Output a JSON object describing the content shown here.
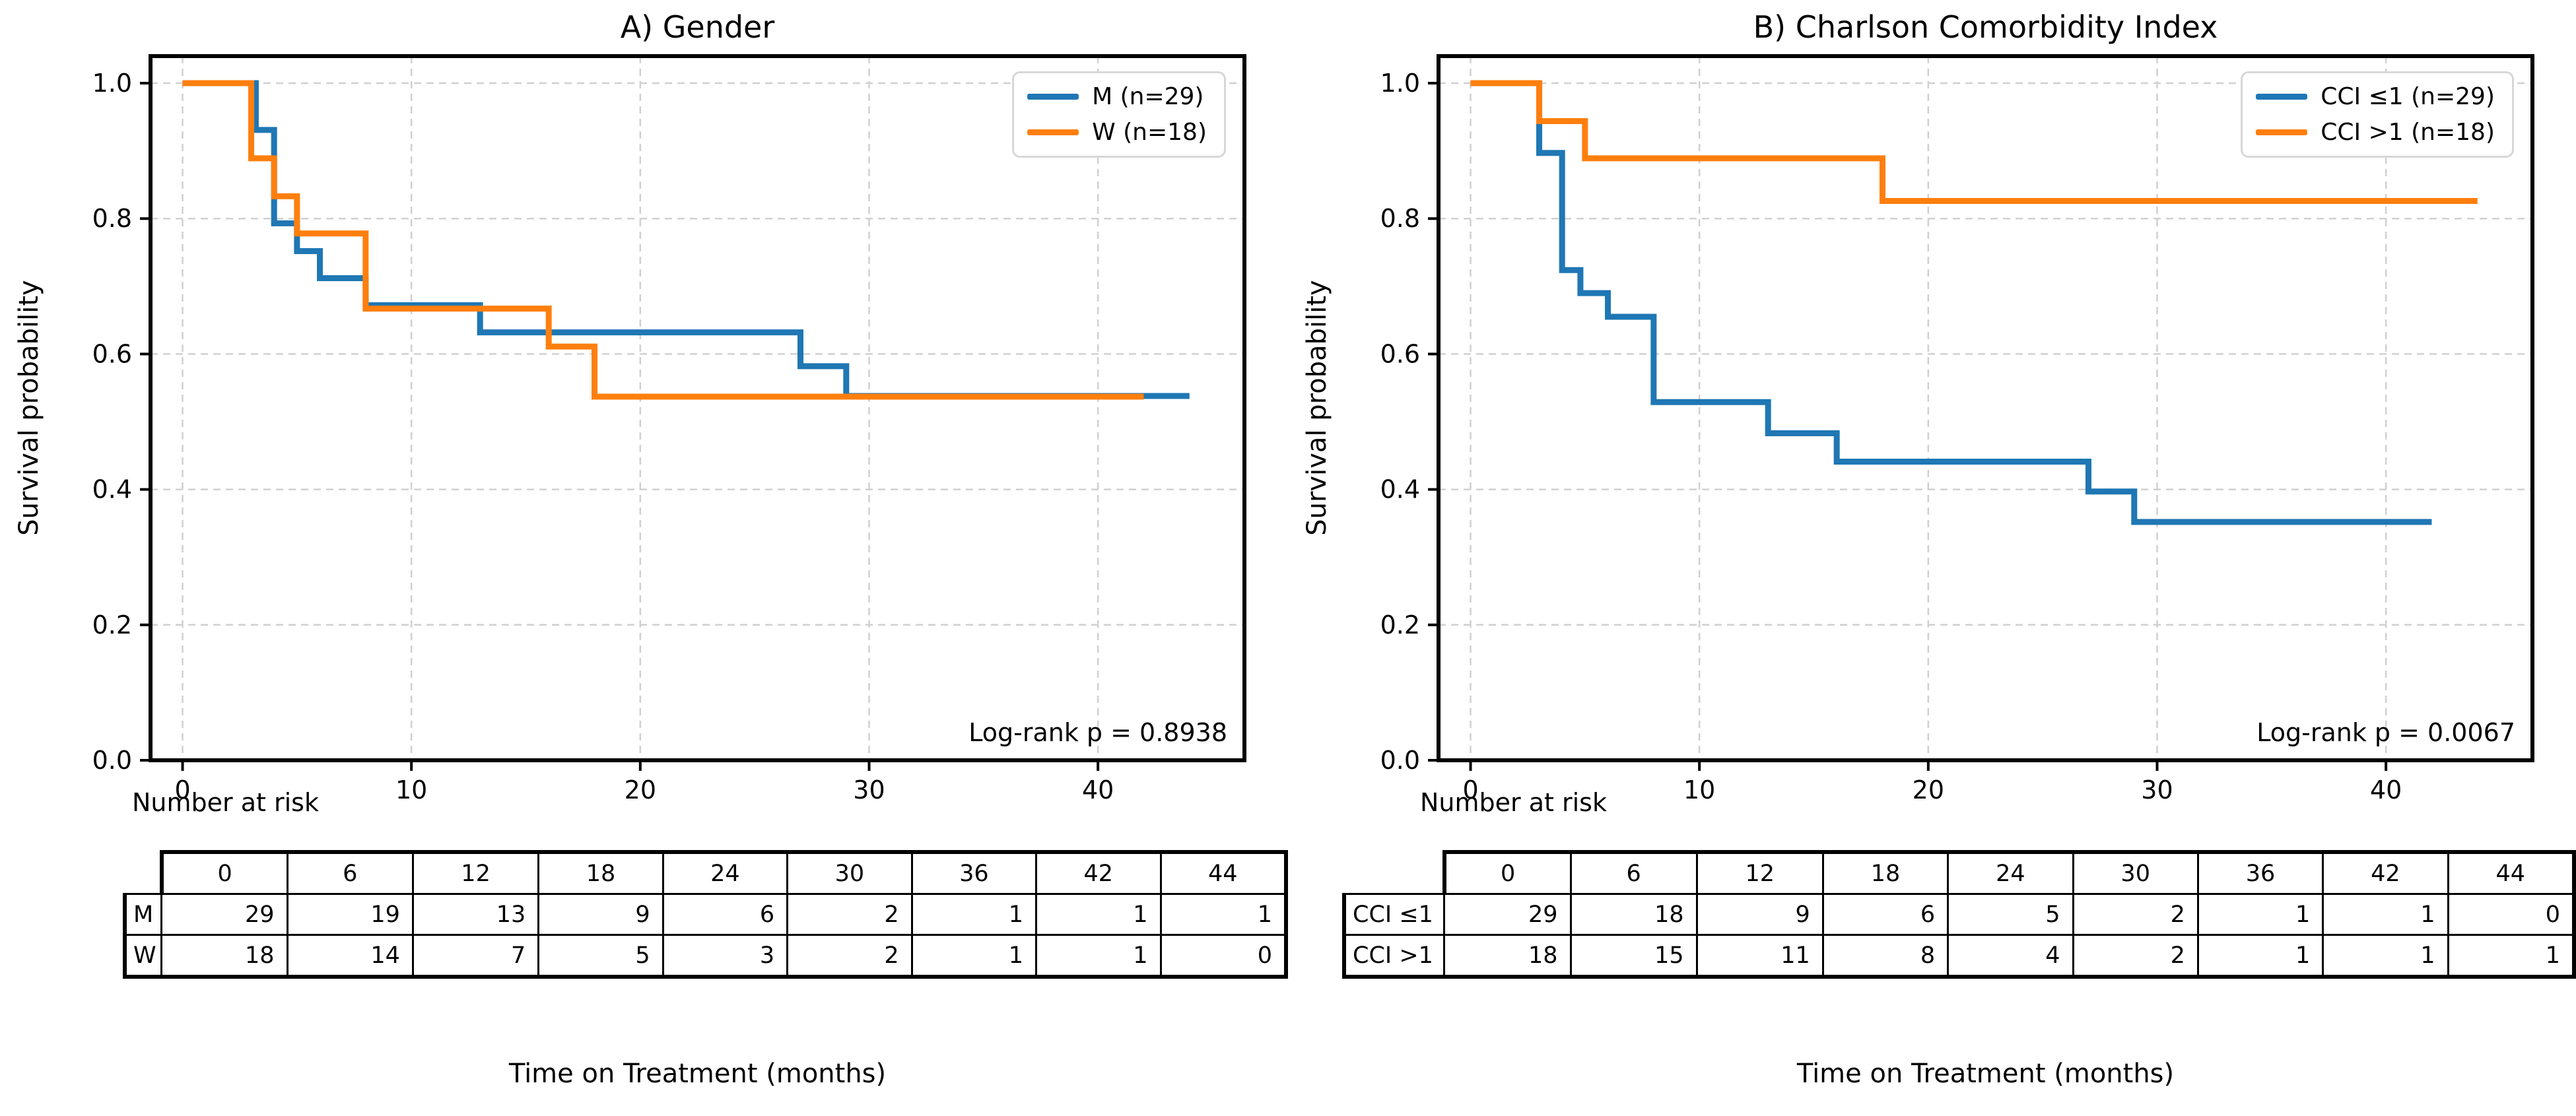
{
  "figure": {
    "background": "#ffffff",
    "number_at_risk_label": "Number at risk",
    "colors": {
      "series_blue": "#1f77b4",
      "series_orange": "#ff7f0e",
      "grid": "#d0d0d0",
      "spine": "#000000",
      "text": "#000000",
      "legend_border": "#d7d7d7"
    }
  },
  "chart_data": [
    {
      "type": "line",
      "subtype": "kaplan_meier_step",
      "title": "A) Gender",
      "xlabel": "Time on Treatment (months)",
      "ylabel": "Survival probability",
      "annotation": "Log-rank p = 0.8938",
      "xlim": [
        -1.4,
        46.4
      ],
      "ylim": [
        0,
        1.04
      ],
      "x_ticks": [
        0,
        10,
        20,
        30,
        40
      ],
      "y_ticks": [
        0.0,
        0.2,
        0.4,
        0.6,
        0.8,
        1.0
      ],
      "grid": true,
      "legend_position": "upper right",
      "series": [
        {
          "name": "M (n=29)",
          "color": "#1f77b4",
          "steps": [
            [
              0,
              1.0
            ],
            [
              3.2,
              0.931
            ],
            [
              4,
              0.793
            ],
            [
              5,
              0.752
            ],
            [
              6,
              0.712
            ],
            [
              8,
              0.672
            ],
            [
              13,
              0.632
            ],
            [
              27,
              0.582
            ],
            [
              29,
              0.538
            ]
          ],
          "end_x": 44
        },
        {
          "name": "W (n=18)",
          "color": "#ff7f0e",
          "steps": [
            [
              0,
              1.0
            ],
            [
              3,
              0.889
            ],
            [
              4,
              0.833
            ],
            [
              5,
              0.778
            ],
            [
              8,
              0.667
            ],
            [
              16,
              0.611
            ],
            [
              18,
              0.537
            ]
          ],
          "end_x": 42
        }
      ],
      "risk_table": {
        "time_points": [
          0,
          6,
          12,
          18,
          24,
          30,
          36,
          42,
          44
        ],
        "rows": [
          {
            "label": "M",
            "counts": [
              29,
              19,
              13,
              9,
              6,
              2,
              1,
              1,
              1
            ]
          },
          {
            "label": "W",
            "counts": [
              18,
              14,
              7,
              5,
              3,
              2,
              1,
              1,
              0
            ]
          }
        ]
      }
    },
    {
      "type": "line",
      "subtype": "kaplan_meier_step",
      "title": "B) Charlson Comorbidity Index",
      "xlabel": "Time on Treatment (months)",
      "ylabel": "Survival probability",
      "annotation": "Log-rank p = 0.0067",
      "xlim": [
        -1.4,
        46.4
      ],
      "ylim": [
        0,
        1.04
      ],
      "x_ticks": [
        0,
        10,
        20,
        30,
        40
      ],
      "y_ticks": [
        0.0,
        0.2,
        0.4,
        0.6,
        0.8,
        1.0
      ],
      "grid": true,
      "legend_position": "upper right",
      "series": [
        {
          "name": "CCI ≤1 (n=29)",
          "color": "#1f77b4",
          "steps": [
            [
              0,
              1.0
            ],
            [
              3,
              0.897
            ],
            [
              4,
              0.724
            ],
            [
              4.8,
              0.69
            ],
            [
              6,
              0.655
            ],
            [
              8,
              0.529
            ],
            [
              13,
              0.483
            ],
            [
              16,
              0.441
            ],
            [
              27,
              0.397
            ],
            [
              29,
              0.352
            ]
          ],
          "end_x": 42
        },
        {
          "name": "CCI >1 (n=18)",
          "color": "#ff7f0e",
          "steps": [
            [
              0,
              1.0
            ],
            [
              3,
              0.944
            ],
            [
              5,
              0.889
            ],
            [
              18,
              0.826
            ]
          ],
          "end_x": 44
        }
      ],
      "risk_table": {
        "time_points": [
          0,
          6,
          12,
          18,
          24,
          30,
          36,
          42,
          44
        ],
        "rows": [
          {
            "label": "CCI ≤1",
            "counts": [
              29,
              18,
              9,
              6,
              5,
              2,
              1,
              1,
              0
            ]
          },
          {
            "label": "CCI >1",
            "counts": [
              18,
              15,
              11,
              8,
              4,
              2,
              1,
              1,
              1
            ]
          }
        ]
      }
    }
  ]
}
